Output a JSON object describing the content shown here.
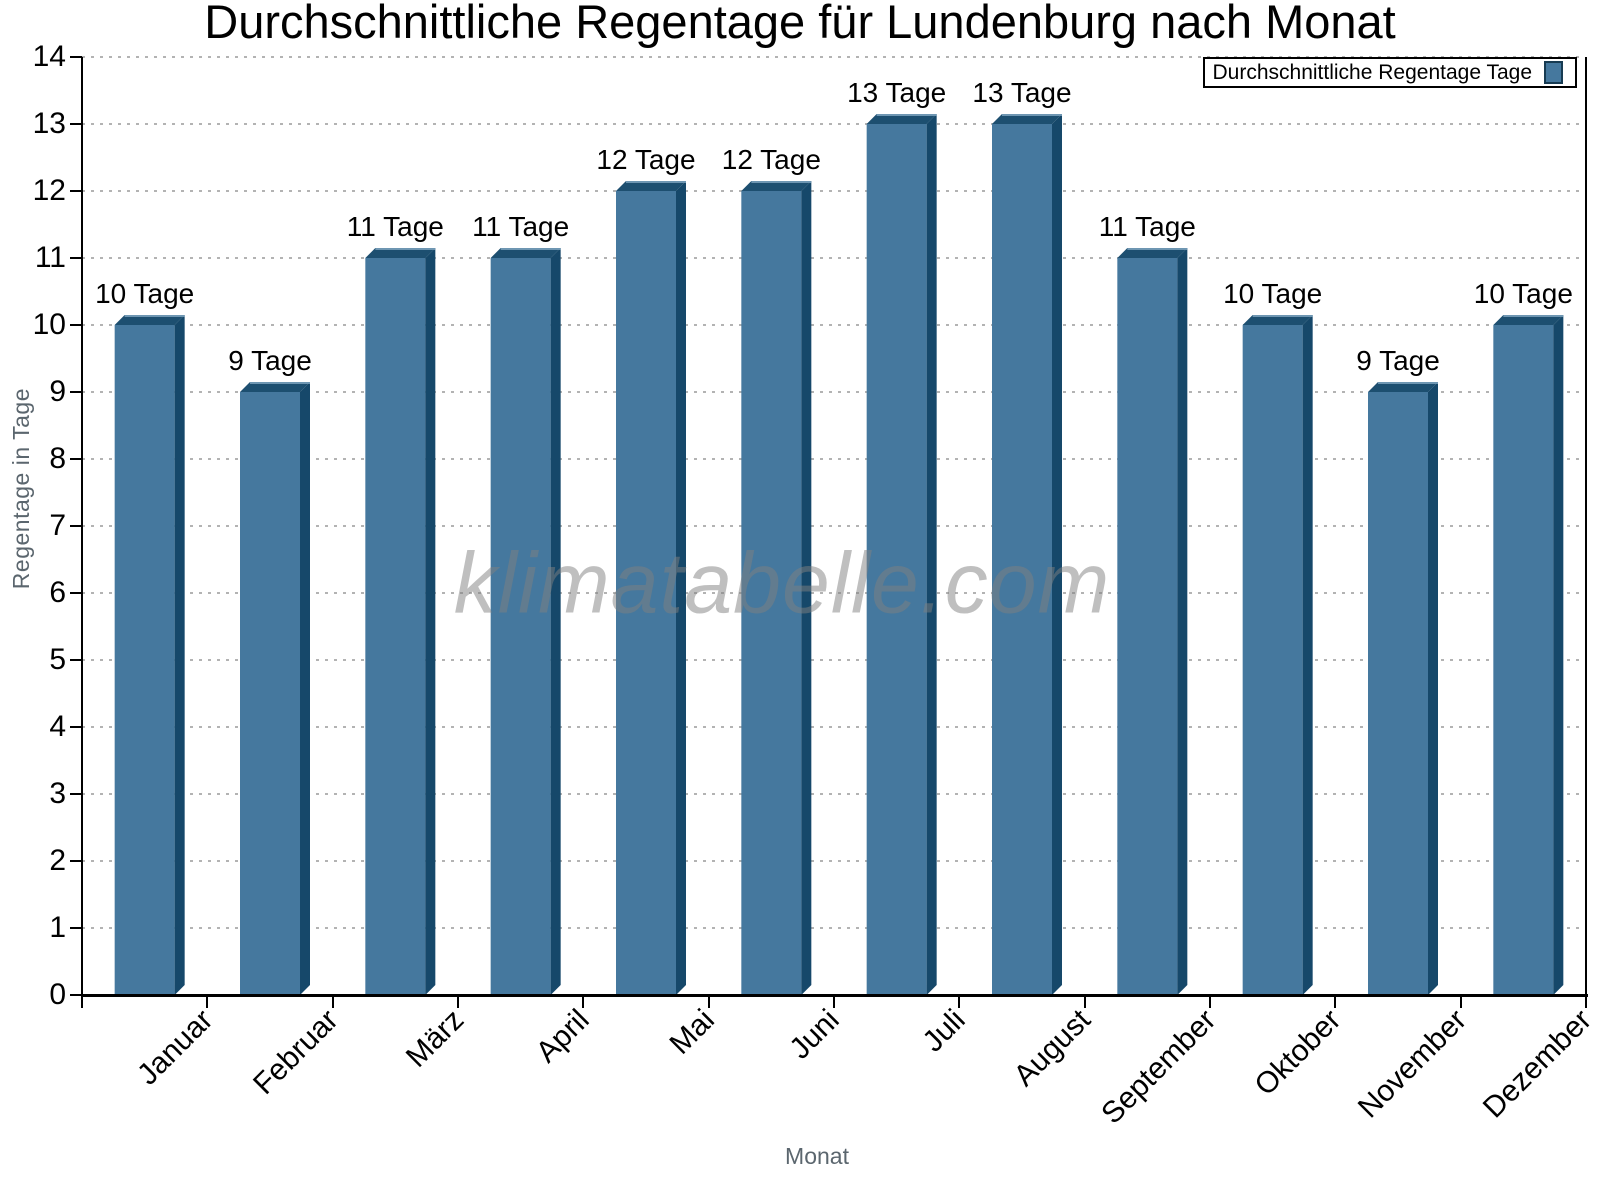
{
  "title": "Durchschnittliche Regentage für Lundenburg nach Monat",
  "watermark": "klimatabelle.com",
  "legend": {
    "label": "Durchschnittliche Regentage Tage"
  },
  "axes": {
    "xlabel": "Monat",
    "ylabel": "Regentage in Tage"
  },
  "colors": {
    "bar_face": "#45789E",
    "bar_side": "#16486A",
    "bar_top": "#1D4F70",
    "bar_top_highlight": "#6E96B2",
    "swatch_border": "#173B52",
    "axis": "#000000",
    "grid": "#B3B3B3",
    "muted_text": "#5B666E",
    "watermark_text": "rgba(128,128,128,0.5)"
  },
  "chart_data": {
    "type": "bar",
    "title": "Durchschnittliche Regentage für Lundenburg nach Monat",
    "categories": [
      "Januar",
      "Februar",
      "März",
      "April",
      "Mai",
      "Juni",
      "Juli",
      "August",
      "September",
      "Oktober",
      "November",
      "Dezember"
    ],
    "values": [
      10,
      9,
      11,
      11,
      12,
      12,
      13,
      13,
      11,
      10,
      9,
      10
    ],
    "bar_labels": [
      "10 Tage",
      "9 Tage",
      "11 Tage",
      "11 Tage",
      "12 Tage",
      "12 Tage",
      "13 Tage",
      "13 Tage",
      "11 Tage",
      "10 Tage",
      "9 Tage",
      "10 Tage"
    ],
    "series_name": "Durchschnittliche Regentage Tage",
    "xlabel": "Monat",
    "ylabel": "Regentage in Tage",
    "ylim": [
      0,
      14
    ],
    "ytick_step": 1,
    "grid": "horizontal-dotted",
    "legend_position": "top-right",
    "style": "pseudo-3d-bars"
  }
}
